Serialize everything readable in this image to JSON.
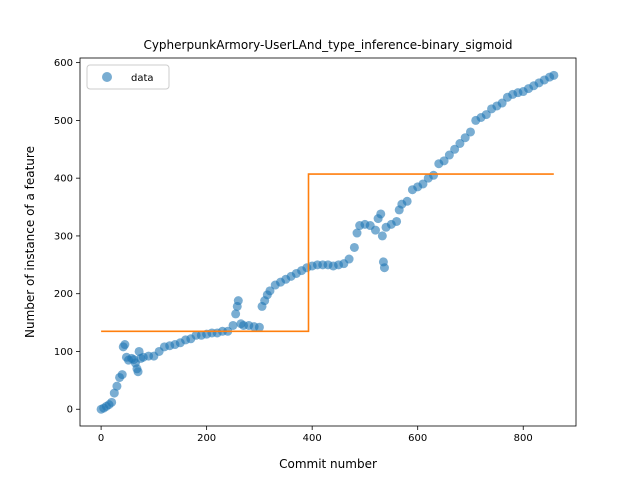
{
  "chart_data": {
    "type": "scatter",
    "title": "CypherpunkArmory-UserLAnd_type_inference-binary_sigmoid",
    "xlabel": "Commit number",
    "ylabel": "Number of instance of a feature",
    "xlim": [
      -40,
      900
    ],
    "ylim": [
      -29,
      608
    ],
    "xticks": [
      0,
      200,
      400,
      600,
      800
    ],
    "yticks": [
      0,
      100,
      200,
      300,
      400,
      500,
      600
    ],
    "legend": {
      "placement": "top-left",
      "entries": [
        "data"
      ]
    },
    "colors": {
      "data": "#1f77b4",
      "fit": "#ff7f0e"
    },
    "series": [
      {
        "name": "data",
        "kind": "scatter",
        "points": [
          [
            0,
            0
          ],
          [
            5,
            2
          ],
          [
            10,
            5
          ],
          [
            15,
            8
          ],
          [
            20,
            12
          ],
          [
            25,
            28
          ],
          [
            30,
            40
          ],
          [
            35,
            55
          ],
          [
            40,
            60
          ],
          [
            42,
            108
          ],
          [
            45,
            112
          ],
          [
            48,
            90
          ],
          [
            52,
            85
          ],
          [
            58,
            88
          ],
          [
            62,
            86
          ],
          [
            65,
            80
          ],
          [
            68,
            70
          ],
          [
            70,
            65
          ],
          [
            72,
            100
          ],
          [
            75,
            88
          ],
          [
            80,
            90
          ],
          [
            90,
            92
          ],
          [
            100,
            92
          ],
          [
            110,
            100
          ],
          [
            120,
            108
          ],
          [
            130,
            110
          ],
          [
            140,
            112
          ],
          [
            150,
            115
          ],
          [
            160,
            120
          ],
          [
            170,
            122
          ],
          [
            180,
            128
          ],
          [
            190,
            128
          ],
          [
            200,
            130
          ],
          [
            210,
            132
          ],
          [
            220,
            132
          ],
          [
            230,
            135
          ],
          [
            240,
            135
          ],
          [
            250,
            145
          ],
          [
            255,
            165
          ],
          [
            258,
            178
          ],
          [
            260,
            188
          ],
          [
            265,
            148
          ],
          [
            270,
            145
          ],
          [
            280,
            145
          ],
          [
            290,
            143
          ],
          [
            300,
            142
          ],
          [
            305,
            178
          ],
          [
            310,
            188
          ],
          [
            315,
            198
          ],
          [
            320,
            205
          ],
          [
            330,
            215
          ],
          [
            340,
            220
          ],
          [
            350,
            225
          ],
          [
            360,
            230
          ],
          [
            370,
            235
          ],
          [
            380,
            240
          ],
          [
            390,
            245
          ],
          [
            400,
            248
          ],
          [
            410,
            250
          ],
          [
            420,
            250
          ],
          [
            430,
            250
          ],
          [
            440,
            248
          ],
          [
            450,
            250
          ],
          [
            460,
            252
          ],
          [
            470,
            260
          ],
          [
            480,
            280
          ],
          [
            485,
            305
          ],
          [
            490,
            318
          ],
          [
            500,
            320
          ],
          [
            510,
            318
          ],
          [
            520,
            310
          ],
          [
            525,
            330
          ],
          [
            530,
            338
          ],
          [
            533,
            300
          ],
          [
            535,
            255
          ],
          [
            537,
            245
          ],
          [
            540,
            315
          ],
          [
            550,
            320
          ],
          [
            560,
            325
          ],
          [
            565,
            345
          ],
          [
            570,
            355
          ],
          [
            580,
            360
          ],
          [
            590,
            380
          ],
          [
            600,
            385
          ],
          [
            610,
            390
          ],
          [
            620,
            400
          ],
          [
            630,
            405
          ],
          [
            640,
            425
          ],
          [
            650,
            430
          ],
          [
            660,
            440
          ],
          [
            670,
            450
          ],
          [
            680,
            460
          ],
          [
            690,
            470
          ],
          [
            700,
            480
          ],
          [
            710,
            500
          ],
          [
            720,
            505
          ],
          [
            730,
            510
          ],
          [
            740,
            520
          ],
          [
            750,
            525
          ],
          [
            760,
            530
          ],
          [
            770,
            540
          ],
          [
            780,
            545
          ],
          [
            790,
            548
          ],
          [
            800,
            550
          ],
          [
            810,
            555
          ],
          [
            820,
            560
          ],
          [
            830,
            565
          ],
          [
            840,
            570
          ],
          [
            850,
            575
          ],
          [
            858,
            578
          ]
        ]
      },
      {
        "name": "",
        "kind": "step",
        "points": [
          [
            0,
            135
          ],
          [
            393,
            135
          ],
          [
            393,
            407
          ],
          [
            858,
            407
          ]
        ]
      }
    ]
  }
}
